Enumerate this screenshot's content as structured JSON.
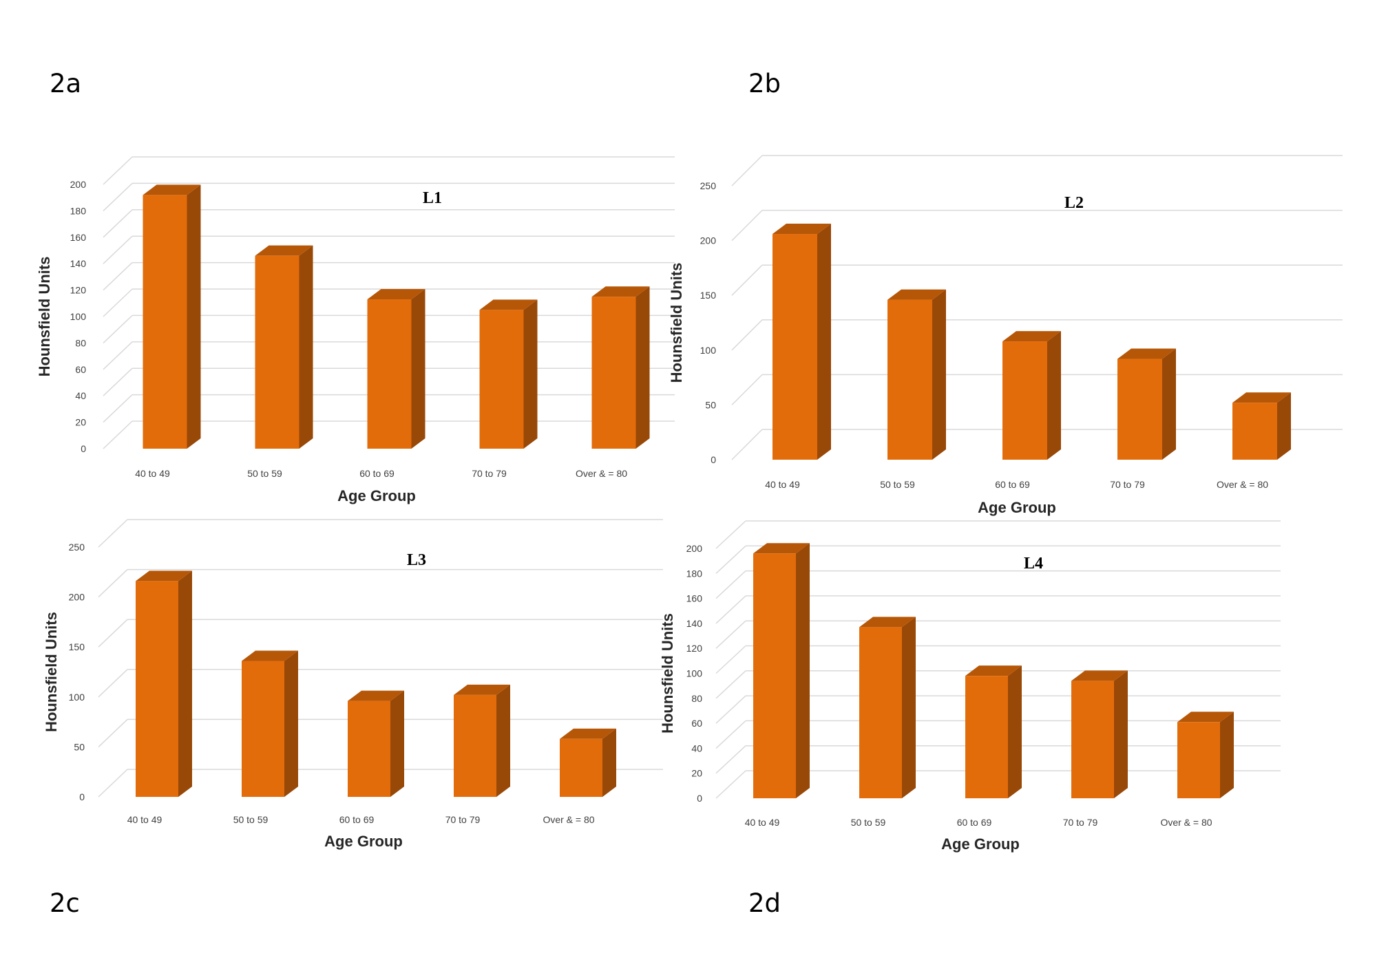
{
  "panel_tags": [
    "2a",
    "2b",
    "2c",
    "2d"
  ],
  "colors": {
    "bar_front": "#E36C0A",
    "bar_side": "#984807",
    "bar_top": "#B65708",
    "grid": "#D9D9D9"
  },
  "chart_data": [
    {
      "type": "bar",
      "title": "L1",
      "xlabel": "Age Group",
      "ylabel": "Hounsfield Units",
      "categories": [
        "40 to 49",
        "50 to 59",
        "60 to 69",
        "70 to 79",
        "Over & = 80"
      ],
      "values": [
        192,
        146,
        113,
        105,
        115
      ],
      "ylim": [
        0,
        200
      ],
      "yticks": [
        "0",
        "20",
        "40",
        "60",
        "80",
        "100",
        "120",
        "140",
        "160",
        "180",
        "200"
      ],
      "grid": true
    },
    {
      "type": "bar",
      "title": "L2",
      "xlabel": "Age Group",
      "ylabel": "Hounsfield Units",
      "categories": [
        "40 to 49",
        "50 to 59",
        "60 to 69",
        "70 to 79",
        "Over & = 80"
      ],
      "values": [
        206,
        146,
        108,
        92,
        52
      ],
      "ylim": [
        0,
        250
      ],
      "yticks": [
        "0",
        "50",
        "100",
        "150",
        "200",
        "250"
      ],
      "grid": true
    },
    {
      "type": "bar",
      "title": "L3",
      "xlabel": "Age Group",
      "ylabel": "Hounsfield Units",
      "categories": [
        "40 to 49",
        "50 to 59",
        "60 to 69",
        "70 to 79",
        "Over & = 80"
      ],
      "values": [
        216,
        136,
        96,
        102,
        58
      ],
      "ylim": [
        0,
        250
      ],
      "yticks": [
        "0",
        "50",
        "100",
        "150",
        "200",
        "250"
      ],
      "grid": true
    },
    {
      "type": "bar",
      "title": "L4",
      "xlabel": "Age Group",
      "ylabel": "Hounsfield Units",
      "categories": [
        "40 to 49",
        "50 to 59",
        "60 to 69",
        "70 to 79",
        "Over & = 80"
      ],
      "values": [
        196,
        137,
        98,
        94,
        61
      ],
      "ylim": [
        0,
        200
      ],
      "yticks": [
        "0",
        "20",
        "40",
        "60",
        "80",
        "100",
        "120",
        "140",
        "160",
        "180",
        "200"
      ],
      "grid": true
    }
  ]
}
